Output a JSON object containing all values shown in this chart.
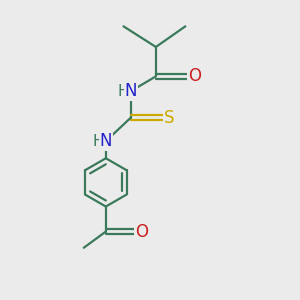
{
  "background_color": "#ebebeb",
  "bond_color": "#3a7a5a",
  "atom_colors": {
    "N": "#2222cc",
    "O": "#cc2020",
    "S": "#ccaa00",
    "C": "#3a7a5a"
  },
  "figsize": [
    3.0,
    3.0
  ],
  "dpi": 100,
  "bond_lw": 1.6,
  "font_size": 12
}
